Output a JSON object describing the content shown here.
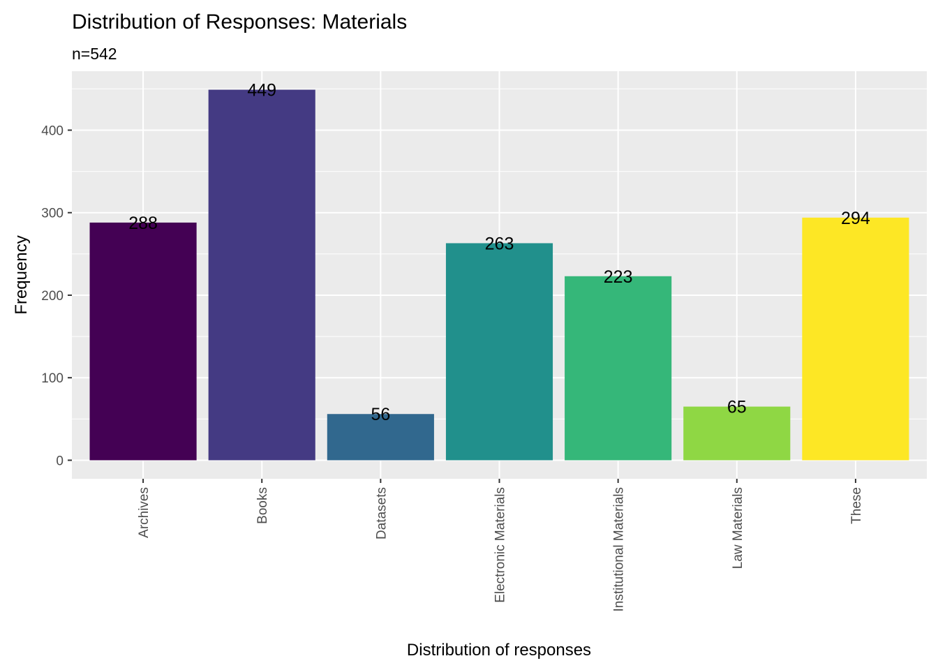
{
  "chart_data": {
    "type": "bar",
    "title": "Distribution of Responses: Materials",
    "subtitle": "n=542",
    "xlabel": "Distribution of responses",
    "ylabel": "Frequency",
    "categories": [
      "Archives",
      "Books",
      "Datasets",
      "Electronic Materials",
      "Institutional Materials",
      "Law Materials",
      "These"
    ],
    "values": [
      288,
      449,
      56,
      263,
      223,
      65,
      294
    ],
    "data_labels": [
      "288",
      "449",
      "56",
      "263",
      "223",
      "65",
      "294"
    ],
    "colors": [
      "#440154",
      "#443A83",
      "#31688E",
      "#21908C",
      "#35B779",
      "#8FD744",
      "#FDE725"
    ],
    "yticks": [
      0,
      100,
      200,
      300,
      400
    ],
    "ytick_labels": [
      "0",
      "100",
      "200",
      "300",
      "400"
    ],
    "ylim": [
      -22.45,
      471.45
    ],
    "panel_background": "#EBEBEB",
    "grid": true,
    "legend": "none",
    "x_tick_label_rotation": "vertical"
  }
}
